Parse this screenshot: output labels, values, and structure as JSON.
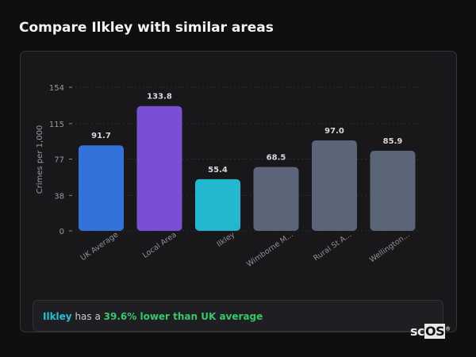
{
  "title": "Compare Ilkley with similar areas",
  "chart_data": {
    "type": "bar",
    "title": "",
    "xlabel": "",
    "ylabel": "Crimes per 1,000",
    "ylim": [
      0,
      154
    ],
    "yticks": [
      0,
      38,
      77,
      115,
      154
    ],
    "grid": true,
    "categories": [
      "UK Average",
      "Local Area",
      "Ilkley",
      "Wimborne M...",
      "Rural St A...",
      "Wellington..."
    ],
    "values": [
      91.7,
      133.8,
      55.4,
      68.5,
      97.0,
      85.9
    ],
    "data_labels": [
      "91.7",
      "133.8",
      "55.4",
      "68.5",
      "97.0",
      "85.9"
    ],
    "colors": [
      "#3373d9",
      "#7b4fd4",
      "#22b8cf",
      "#5a6678",
      "#5a6678",
      "#5a6678"
    ]
  },
  "callout": {
    "place": "Ilkley",
    "mid": " has a ",
    "highlight": "39.6% lower than UK average"
  },
  "logo": {
    "sc": "sc",
    "os": "OS",
    "mark": "®"
  }
}
